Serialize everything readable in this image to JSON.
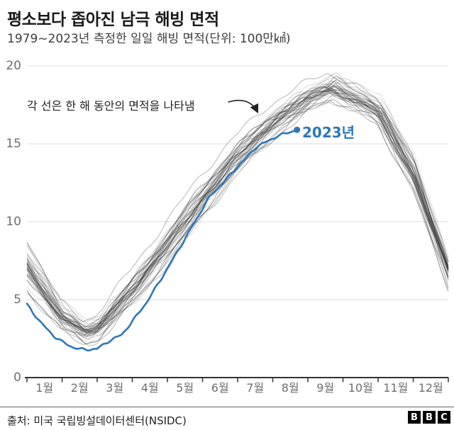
{
  "header": {
    "title": "평소보다 좁아진 남극 해빙 면적",
    "subtitle": "1979~2023년 측정한 일일 해빙 면적(단위: 100만㎢)"
  },
  "annotation": {
    "text": "각 선은 한 해 동안의 면적을 나타냄"
  },
  "series_label_2023": "2023년",
  "footer": {
    "source": "출처: 미국 국립빙설데이터센터(NSIDC)",
    "logo_letters": [
      "B",
      "B",
      "C"
    ]
  },
  "colors": {
    "accent_blue": "#2e77b8",
    "gray_line_base": "rgba(45,45,45,",
    "grid": "#e3e3e3",
    "axis": "#333333",
    "text_dark": "#1a1a1a",
    "text_gray": "#6e6e6e"
  },
  "chart_data": {
    "type": "line",
    "title": "평소보다 좁아진 남극 해빙 면적",
    "subtitle": "1979~2023년 측정한 일일 해빙 면적(단위: 100만㎢)",
    "source": "출처: 미국 국립빙설데이터센터(NSIDC)",
    "annotation": "각 선은 한 해 동안의 면적을 나타냄",
    "x_axis": {
      "tick_labels": [
        "1월",
        "2월",
        "3월",
        "4월",
        "5월",
        "6월",
        "7월",
        "8월",
        "9월",
        "10월",
        "11월",
        "12월"
      ],
      "range_months": [
        0,
        12
      ]
    },
    "y_axis": {
      "ticks": [
        0,
        5,
        10,
        15,
        20
      ],
      "range": [
        0,
        20
      ]
    },
    "legend_position": "inline-label",
    "grid": "horizontal-only",
    "series": [
      {
        "name": "1979~2022년 각 연도(회색 선)",
        "type": "multi-line",
        "count": 44,
        "x_month": [
          0,
          1,
          1.65,
          2,
          3,
          4,
          5,
          6,
          7,
          8,
          8.65,
          10,
          11,
          12
        ],
        "mean": [
          7.3,
          3.9,
          3.0,
          3.2,
          5.8,
          8.7,
          11.7,
          14.4,
          16.5,
          18.0,
          18.7,
          17.2,
          13.2,
          7.0
        ],
        "min": [
          5.4,
          2.9,
          2.1,
          2.3,
          4.6,
          7.3,
          10.3,
          13.1,
          15.3,
          17.0,
          17.8,
          16.2,
          11.9,
          5.6
        ],
        "max": [
          9.4,
          5.1,
          3.9,
          4.2,
          7.0,
          10.0,
          13.0,
          15.6,
          17.7,
          19.1,
          19.9,
          18.3,
          14.6,
          7.9
        ]
      },
      {
        "name": "2023년",
        "type": "line",
        "color": "#2e77b8",
        "endpoint_dot": true,
        "x_month": [
          0,
          0.4,
          0.8,
          1.0,
          1.3,
          1.5,
          1.8,
          2.0,
          2.3,
          2.7,
          3.0,
          3.4,
          3.95,
          4.5,
          5.17,
          5.86,
          6.53,
          7.14,
          7.69
        ],
        "values": [
          4.7,
          3.5,
          2.6,
          2.3,
          1.95,
          1.82,
          1.8,
          1.85,
          2.3,
          2.75,
          3.6,
          4.8,
          6.8,
          8.9,
          11.5,
          13.2,
          14.8,
          15.5,
          15.9
        ]
      }
    ]
  }
}
